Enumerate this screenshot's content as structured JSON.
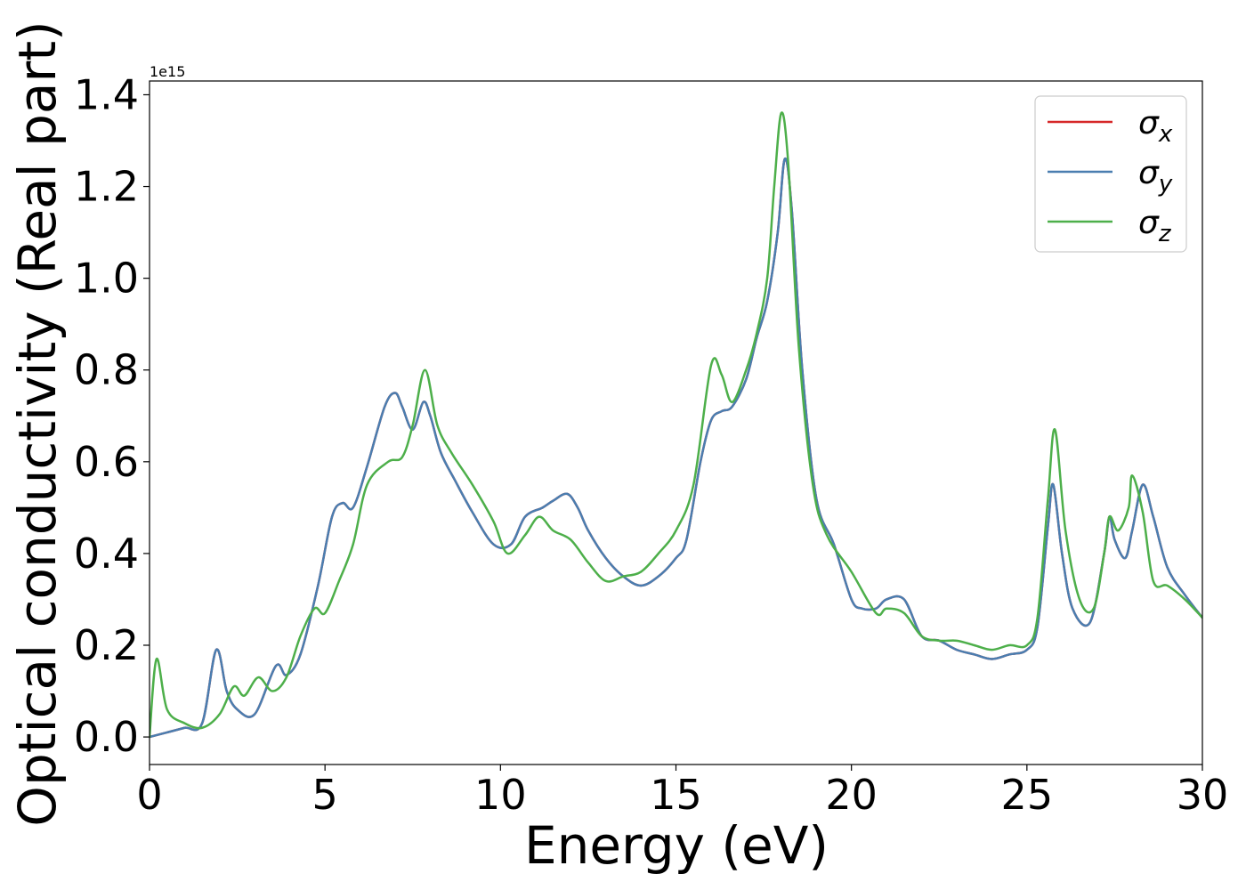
{
  "chart_data": {
    "type": "line",
    "title": "",
    "xlabel": "Energy (eV)",
    "ylabel": "Optical conductivity (Real part)",
    "y_offset_text": "1e15",
    "xlim": [
      0,
      30
    ],
    "ylim": [
      -0.06,
      1.43
    ],
    "xticks": [
      0,
      5,
      10,
      15,
      20,
      25,
      30
    ],
    "xtick_labels": [
      "0",
      "5",
      "10",
      "15",
      "20",
      "25",
      "30"
    ],
    "yticks": [
      0.0,
      0.2,
      0.4,
      0.6,
      0.8,
      1.0,
      1.2,
      1.4
    ],
    "ytick_labels": [
      "0.0",
      "0.2",
      "0.4",
      "0.6",
      "0.8",
      "1.0",
      "1.2",
      "1.4"
    ],
    "grid": false,
    "legend_position": "top-right",
    "series": [
      {
        "name": "σx",
        "legend_symbol": "σ",
        "legend_subscript": "x",
        "color": "#d62728",
        "x": [
          0,
          0.5,
          1,
          1.5,
          1.9,
          2.2,
          2.5,
          3,
          3.6,
          3.9,
          4.3,
          4.8,
          5.2,
          5.5,
          5.8,
          6.2,
          6.7,
          7.0,
          7.2,
          7.5,
          7.8,
          8.0,
          8.3,
          8.7,
          9.2,
          9.8,
          10.3,
          10.7,
          11.2,
          11.5,
          11.9,
          12.2,
          12.5,
          13.0,
          13.5,
          14.0,
          14.5,
          15.0,
          15.3,
          15.7,
          16.0,
          16.3,
          16.6,
          17.0,
          17.3,
          17.6,
          17.9,
          18.1,
          18.3,
          18.6,
          19.0,
          19.5,
          20.0,
          20.3,
          20.7,
          21.0,
          21.5,
          22.0,
          22.5,
          23.0,
          23.5,
          24.0,
          24.5,
          25.0,
          25.3,
          25.6,
          25.75,
          26.0,
          26.3,
          26.8,
          27.2,
          27.35,
          27.5,
          27.8,
          28.0,
          28.3,
          28.6,
          29.0,
          29.5,
          30.0
        ],
        "y": [
          0.0,
          0.01,
          0.02,
          0.03,
          0.19,
          0.1,
          0.06,
          0.05,
          0.155,
          0.135,
          0.18,
          0.33,
          0.48,
          0.51,
          0.5,
          0.59,
          0.72,
          0.75,
          0.72,
          0.67,
          0.73,
          0.7,
          0.62,
          0.56,
          0.49,
          0.42,
          0.42,
          0.48,
          0.5,
          0.515,
          0.53,
          0.5,
          0.45,
          0.39,
          0.35,
          0.33,
          0.35,
          0.39,
          0.43,
          0.6,
          0.69,
          0.71,
          0.72,
          0.78,
          0.87,
          0.95,
          1.1,
          1.26,
          1.15,
          0.8,
          0.52,
          0.42,
          0.3,
          0.28,
          0.28,
          0.3,
          0.3,
          0.22,
          0.21,
          0.19,
          0.18,
          0.17,
          0.18,
          0.19,
          0.24,
          0.46,
          0.55,
          0.4,
          0.28,
          0.25,
          0.4,
          0.48,
          0.43,
          0.39,
          0.45,
          0.55,
          0.48,
          0.37,
          0.31,
          0.26
        ]
      },
      {
        "name": "σy",
        "legend_symbol": "σ",
        "legend_subscript": "y",
        "color": "#4a7eb0",
        "x": [
          0,
          0.5,
          1,
          1.5,
          1.9,
          2.2,
          2.5,
          3,
          3.6,
          3.9,
          4.3,
          4.8,
          5.2,
          5.5,
          5.8,
          6.2,
          6.7,
          7.0,
          7.2,
          7.5,
          7.8,
          8.0,
          8.3,
          8.7,
          9.2,
          9.8,
          10.3,
          10.7,
          11.2,
          11.5,
          11.9,
          12.2,
          12.5,
          13.0,
          13.5,
          14.0,
          14.5,
          15.0,
          15.3,
          15.7,
          16.0,
          16.3,
          16.6,
          17.0,
          17.3,
          17.6,
          17.9,
          18.1,
          18.3,
          18.6,
          19.0,
          19.5,
          20.0,
          20.3,
          20.7,
          21.0,
          21.5,
          22.0,
          22.5,
          23.0,
          23.5,
          24.0,
          24.5,
          25.0,
          25.3,
          25.6,
          25.75,
          26.0,
          26.3,
          26.8,
          27.2,
          27.35,
          27.5,
          27.8,
          28.0,
          28.3,
          28.6,
          29.0,
          29.5,
          30.0
        ],
        "y": [
          0.0,
          0.01,
          0.02,
          0.03,
          0.19,
          0.1,
          0.06,
          0.05,
          0.155,
          0.135,
          0.18,
          0.33,
          0.48,
          0.51,
          0.5,
          0.59,
          0.72,
          0.75,
          0.72,
          0.67,
          0.73,
          0.7,
          0.62,
          0.56,
          0.49,
          0.42,
          0.42,
          0.48,
          0.5,
          0.515,
          0.53,
          0.5,
          0.45,
          0.39,
          0.35,
          0.33,
          0.35,
          0.39,
          0.43,
          0.6,
          0.69,
          0.71,
          0.72,
          0.78,
          0.87,
          0.95,
          1.1,
          1.26,
          1.15,
          0.8,
          0.52,
          0.42,
          0.3,
          0.28,
          0.28,
          0.3,
          0.3,
          0.22,
          0.21,
          0.19,
          0.18,
          0.17,
          0.18,
          0.19,
          0.24,
          0.46,
          0.55,
          0.4,
          0.28,
          0.25,
          0.4,
          0.48,
          0.43,
          0.39,
          0.45,
          0.55,
          0.48,
          0.37,
          0.31,
          0.26
        ]
      },
      {
        "name": "σz",
        "legend_symbol": "σ",
        "legend_subscript": "z",
        "color": "#4daf4a",
        "x": [
          0,
          0.2,
          0.5,
          1,
          1.5,
          2.0,
          2.4,
          2.7,
          3.1,
          3.5,
          3.9,
          4.3,
          4.7,
          5.0,
          5.4,
          5.8,
          6.2,
          6.8,
          7.2,
          7.5,
          7.85,
          8.2,
          8.6,
          9.2,
          9.8,
          10.2,
          10.7,
          11.1,
          11.5,
          12.0,
          12.5,
          13.0,
          13.5,
          14.0,
          14.5,
          15.0,
          15.5,
          16.0,
          16.3,
          16.6,
          17.0,
          17.3,
          17.6,
          17.8,
          18.0,
          18.2,
          18.5,
          18.9,
          19.3,
          20.0,
          20.7,
          21.0,
          21.5,
          22.0,
          22.5,
          23.0,
          23.5,
          24.0,
          24.5,
          25.0,
          25.3,
          25.6,
          25.8,
          26.1,
          26.5,
          26.9,
          27.2,
          27.35,
          27.6,
          27.9,
          28.0,
          28.3,
          28.6,
          29.0,
          29.5,
          30.0
        ],
        "y": [
          0.0,
          0.17,
          0.06,
          0.03,
          0.02,
          0.05,
          0.11,
          0.09,
          0.13,
          0.1,
          0.13,
          0.22,
          0.28,
          0.27,
          0.34,
          0.42,
          0.55,
          0.6,
          0.61,
          0.68,
          0.8,
          0.68,
          0.62,
          0.55,
          0.47,
          0.4,
          0.44,
          0.48,
          0.45,
          0.43,
          0.38,
          0.34,
          0.35,
          0.36,
          0.4,
          0.45,
          0.55,
          0.81,
          0.79,
          0.73,
          0.8,
          0.88,
          1.0,
          1.2,
          1.36,
          1.25,
          0.85,
          0.55,
          0.44,
          0.36,
          0.27,
          0.28,
          0.27,
          0.22,
          0.21,
          0.21,
          0.2,
          0.19,
          0.2,
          0.2,
          0.26,
          0.52,
          0.67,
          0.45,
          0.3,
          0.28,
          0.4,
          0.48,
          0.45,
          0.5,
          0.57,
          0.49,
          0.34,
          0.33,
          0.3,
          0.26
        ]
      }
    ]
  }
}
